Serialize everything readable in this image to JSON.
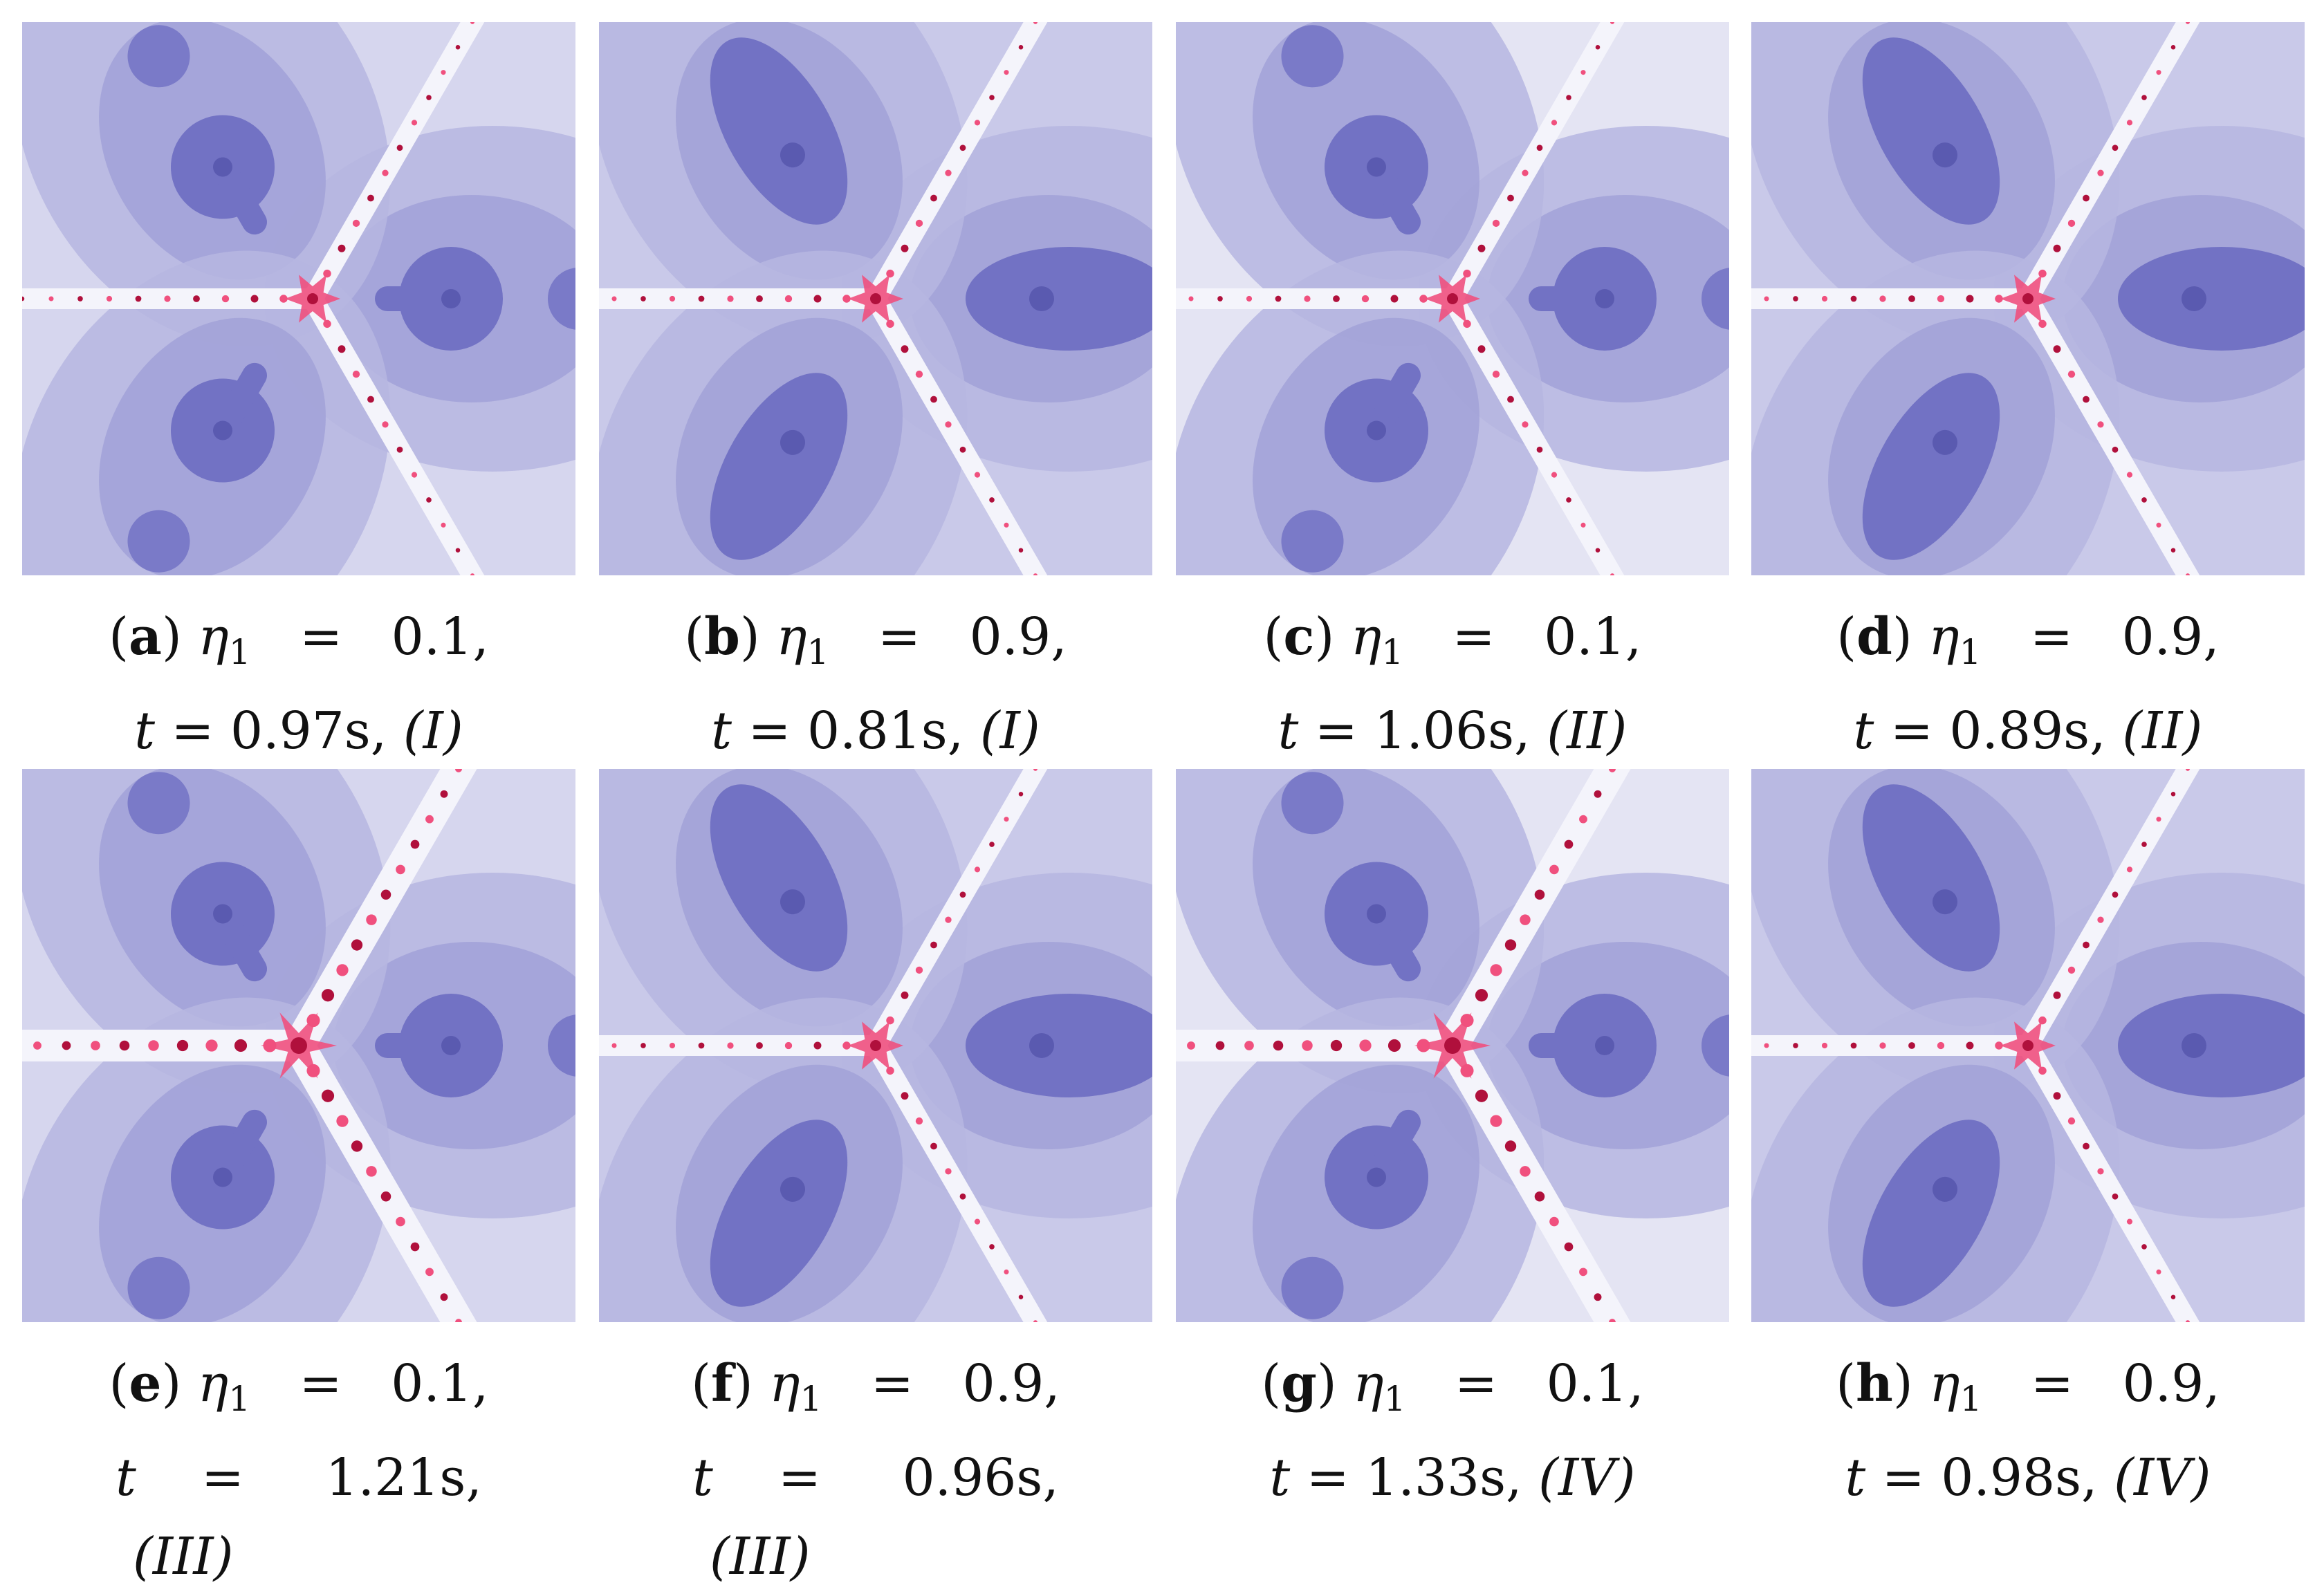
{
  "figure": {
    "panels": [
      {
        "letter": "a",
        "eta_symbol": "η",
        "eta_sub": "1",
        "eq": "=",
        "eta_value": "0.1,",
        "t_symbol": "t",
        "time": "0.97s",
        "method": "(I)",
        "caption_layout": "two-line"
      },
      {
        "letter": "b",
        "eta_symbol": "η",
        "eta_sub": "1",
        "eq": "=",
        "eta_value": "0.9,",
        "t_symbol": "t",
        "time": "0.81s",
        "method": "(I)",
        "caption_layout": "two-line"
      },
      {
        "letter": "c",
        "eta_symbol": "η",
        "eta_sub": "1",
        "eq": "=",
        "eta_value": "0.1,",
        "t_symbol": "t",
        "time": "1.06s",
        "method": "(II)",
        "caption_layout": "two-line"
      },
      {
        "letter": "d",
        "eta_symbol": "η",
        "eta_sub": "1",
        "eq": "=",
        "eta_value": "0.9,",
        "t_symbol": "t",
        "time": "0.89s",
        "method": "(II)",
        "caption_layout": "two-line"
      },
      {
        "letter": "e",
        "eta_symbol": "η",
        "eta_sub": "1",
        "eq": "=",
        "eta_value": "0.1,",
        "t_symbol": "t",
        "time": "1.21s,",
        "method": "(III)",
        "caption_layout": "three-line"
      },
      {
        "letter": "f",
        "eta_symbol": "η",
        "eta_sub": "1",
        "eq": "=",
        "eta_value": "0.9,",
        "t_symbol": "t",
        "time": "0.96s,",
        "method": "(III)",
        "caption_layout": "three-line"
      },
      {
        "letter": "g",
        "eta_symbol": "η",
        "eta_sub": "1",
        "eq": "=",
        "eta_value": "0.1,",
        "t_symbol": "t",
        "time": "1.33s",
        "method": "(IV)",
        "caption_layout": "two-line"
      },
      {
        "letter": "h",
        "eta_symbol": "η",
        "eta_sub": "1",
        "eq": "=",
        "eta_value": "0.9,",
        "t_symbol": "t",
        "time": "0.98s",
        "method": "(IV)",
        "caption_layout": "two-line"
      }
    ]
  },
  "colors": {
    "background_light": "#dcdcf0",
    "basin_mid": "#a3a3d8",
    "basin_dark": "#7272c4",
    "center_dark": "#5a5ab0",
    "julia_pink": "#f0507e",
    "julia_dark": "#b0103c"
  }
}
